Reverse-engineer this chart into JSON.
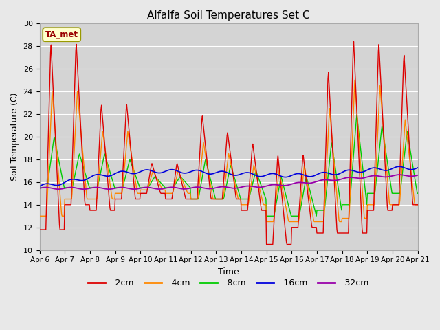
{
  "title": "Alfalfa Soil Temperatures Set C",
  "xlabel": "Time",
  "ylabel": "Soil Temperature (C)",
  "ylim": [
    10,
    30
  ],
  "background_color": "#e8e8e8",
  "plot_bg_color": "#d4d4d4",
  "annotation_label": "TA_met",
  "annotation_color": "#990000",
  "annotation_bg": "#ffffcc",
  "annotation_edge": "#999900",
  "tick_labels": [
    "Apr 6",
    "Apr 7",
    "Apr 8",
    "Apr 9",
    "Apr 10",
    "Apr 11",
    "Apr 12",
    "Apr 13",
    "Apr 14",
    "Apr 15",
    "Apr 16",
    "Apr 17",
    "Apr 18",
    "Apr 19",
    "Apr 20",
    "Apr 21"
  ],
  "series_neg2cm_color": "#dd0000",
  "series_neg4cm_color": "#ff8800",
  "series_neg8cm_color": "#00cc00",
  "series_neg16cm_color": "#0000dd",
  "series_neg32cm_color": "#9900aa",
  "legend_colors": [
    "#dd0000",
    "#ff8800",
    "#00cc00",
    "#0000dd",
    "#9900aa"
  ],
  "legend_labels": [
    "-2cm",
    "-4cm",
    "-8cm",
    "-16cm",
    "-32cm"
  ],
  "linewidth": 1.0,
  "grid_color": "#ffffff",
  "yticks": [
    10,
    12,
    14,
    16,
    18,
    20,
    22,
    24,
    26,
    28,
    30
  ]
}
